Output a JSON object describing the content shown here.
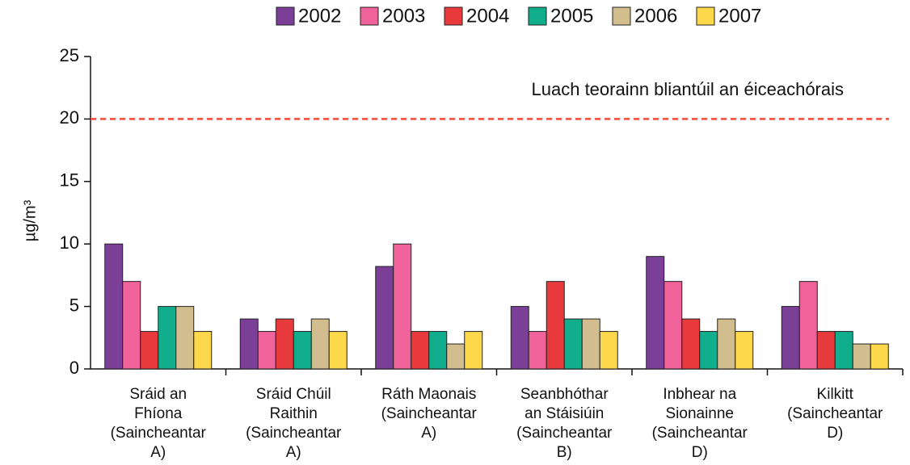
{
  "chart_data": {
    "type": "bar",
    "y_label": "µg/m³",
    "categories": [
      [
        "Sráid an",
        "Fhíona",
        "(Saincheantar",
        "A)"
      ],
      [
        "Sráid Chúil",
        "Raithin",
        "(Saincheantar",
        "A)"
      ],
      [
        "Ráth Maonais",
        "(Saincheantar",
        "A)"
      ],
      [
        "Seanbhóthar",
        "an Stáisiúin",
        "(Saincheantar",
        "B)"
      ],
      [
        "Inbhear na",
        "Sionainne",
        "(Saincheantar",
        "D)"
      ],
      [
        "Kilkitt",
        "(Saincheantar",
        "D)"
      ]
    ],
    "series": [
      {
        "name": "2002",
        "color": "#7b3f98",
        "values": [
          10,
          4,
          8.2,
          5,
          9,
          5
        ]
      },
      {
        "name": "2003",
        "color": "#f0629a",
        "values": [
          7,
          3,
          10,
          3,
          7,
          7
        ]
      },
      {
        "name": "2004",
        "color": "#e8393c",
        "values": [
          3,
          4,
          3,
          7,
          4,
          3
        ]
      },
      {
        "name": "2005",
        "color": "#10ae8c",
        "values": [
          5,
          3,
          3,
          4,
          3,
          3
        ]
      },
      {
        "name": "2006",
        "color": "#d2bd8e",
        "values": [
          5,
          4,
          2,
          4,
          4,
          2
        ]
      },
      {
        "name": "2007",
        "color": "#fcd84a",
        "values": [
          3,
          3,
          3,
          3,
          3,
          2
        ]
      }
    ],
    "reference_line": {
      "value": 20,
      "label": "Luach teorainn bliantúil an éiceachórais",
      "color": "#f04a3a"
    },
    "ylim": [
      0,
      25
    ],
    "yticks": [
      0,
      5,
      10,
      15,
      20,
      25
    ],
    "grid": false,
    "legend": "top"
  }
}
